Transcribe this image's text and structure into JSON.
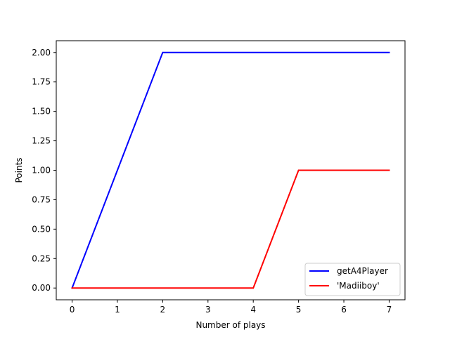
{
  "chart_data": {
    "type": "line",
    "title": "",
    "xlabel": "Number of plays",
    "ylabel": "Points",
    "x": [
      0,
      1,
      2,
      3,
      4,
      5,
      6,
      7
    ],
    "xlim": [
      -0.35,
      7.35
    ],
    "ylim": [
      -0.1,
      2.1
    ],
    "x_ticks": [
      0,
      1,
      2,
      3,
      4,
      5,
      6,
      7
    ],
    "x_tick_labels": [
      "0",
      "1",
      "2",
      "3",
      "4",
      "5",
      "6",
      "7"
    ],
    "y_ticks": [
      0,
      0.25,
      0.5,
      0.75,
      1.0,
      1.25,
      1.5,
      1.75,
      2.0
    ],
    "y_tick_labels": [
      "0.00",
      "0.25",
      "0.50",
      "0.75",
      "1.00",
      "1.25",
      "1.50",
      "1.75",
      "2.00"
    ],
    "grid": false,
    "legend_position": "lower-right",
    "series": [
      {
        "name": "getA4Player",
        "color": "#0000ff",
        "values": [
          0,
          1,
          2,
          2,
          2,
          2,
          2,
          2
        ]
      },
      {
        "name": "'Madiiboy'",
        "color": "#ff0000",
        "values": [
          0,
          0,
          0,
          0,
          0,
          1,
          1,
          1
        ]
      }
    ]
  }
}
